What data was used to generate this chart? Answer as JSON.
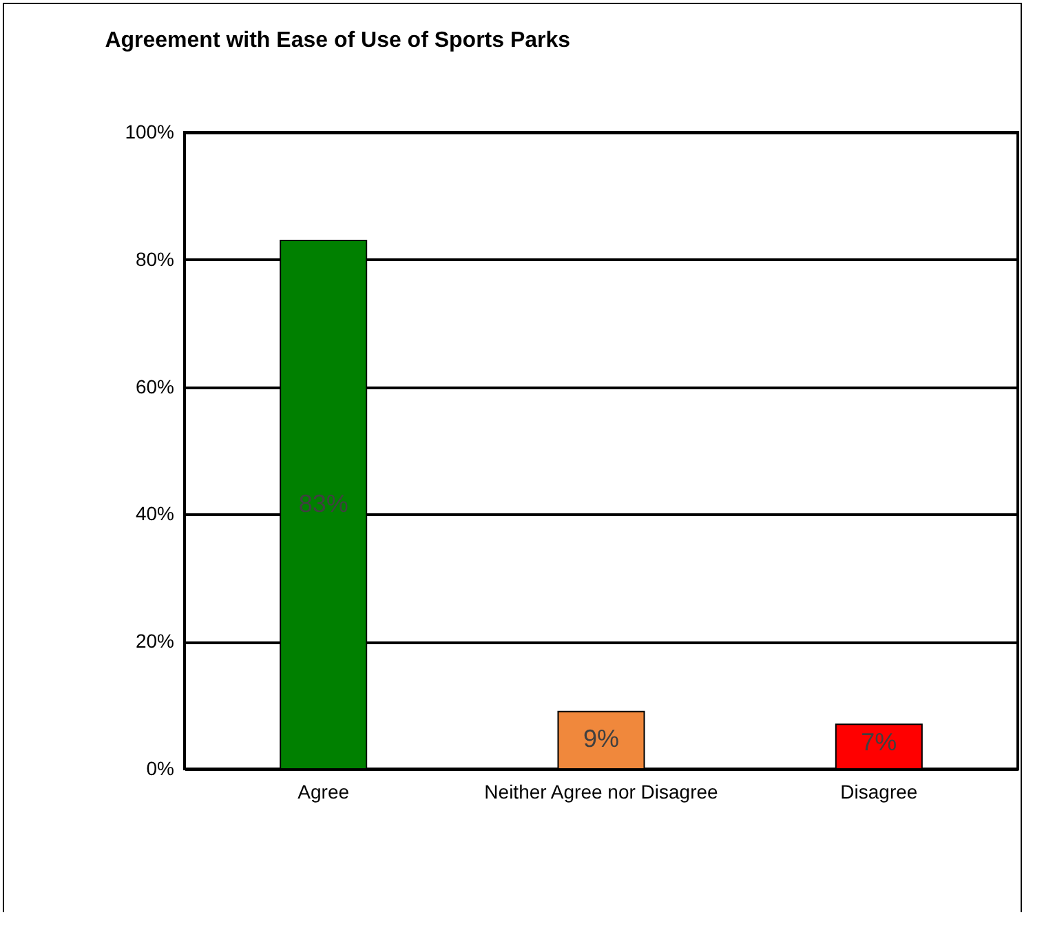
{
  "chart_data": {
    "type": "bar",
    "title": "Agreement with Ease of Use of Sports Parks",
    "categories": [
      "Agree",
      "Neither Agree nor Disagree",
      "Disagree"
    ],
    "values": [
      83,
      9,
      7
    ],
    "colors": [
      "#008000",
      "#f0883c",
      "#ff0000"
    ],
    "value_labels": [
      "83%",
      "9%",
      "7%"
    ],
    "ylim": [
      0,
      100
    ],
    "yticks": [
      {
        "value": 0,
        "label": "0%"
      },
      {
        "value": 20,
        "label": "20%"
      },
      {
        "value": 40,
        "label": "40%"
      },
      {
        "value": 60,
        "label": "60%"
      },
      {
        "value": 80,
        "label": "80%"
      },
      {
        "value": 100,
        "label": "100%"
      }
    ],
    "grid": "y"
  }
}
